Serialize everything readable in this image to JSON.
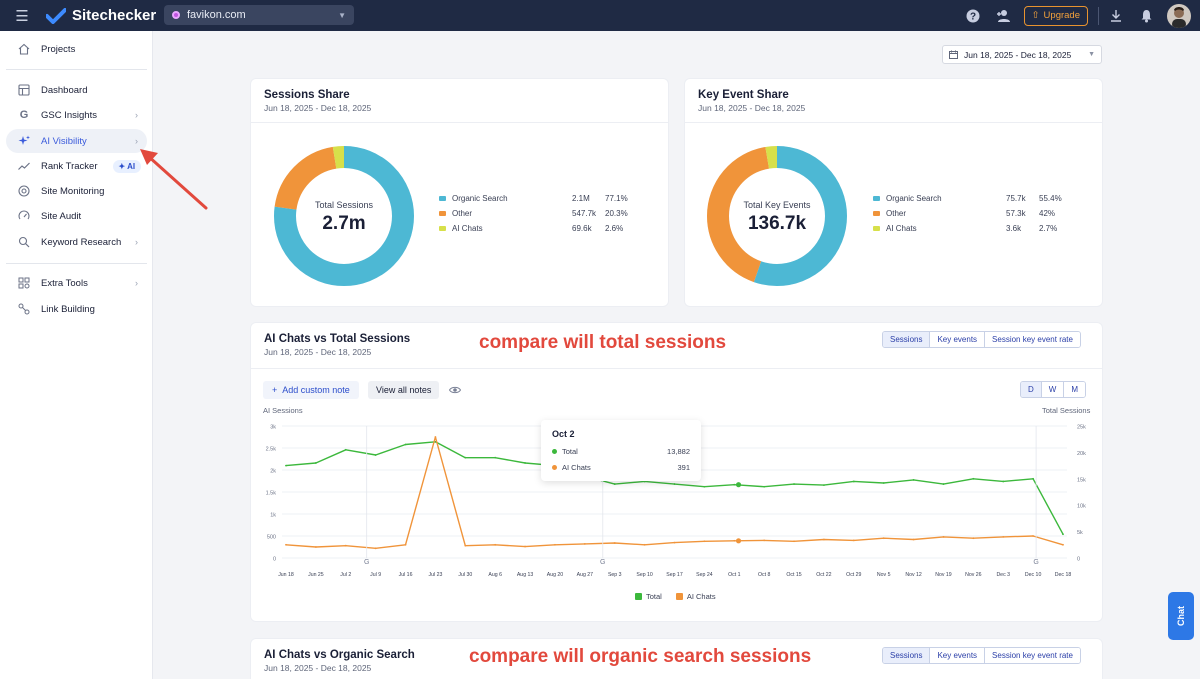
{
  "app": {
    "name": "Sitechecker"
  },
  "topbar": {
    "domain": "favikon.com",
    "upgrade_label": "Upgrade"
  },
  "sidebar": {
    "items": [
      {
        "label": "Projects",
        "icon": "home-icon"
      },
      {
        "label": "Dashboard",
        "icon": "dashboard-icon"
      },
      {
        "label": "GSC Insights",
        "icon": "google-icon"
      },
      {
        "label": "AI Visibility",
        "icon": "sparkle-icon",
        "active": true
      },
      {
        "label": "Rank Tracker",
        "icon": "trend-icon",
        "badge": "AI"
      },
      {
        "label": "Site Monitoring",
        "icon": "monitoring-icon"
      },
      {
        "label": "Site Audit",
        "icon": "audit-icon"
      },
      {
        "label": "Keyword Research",
        "icon": "keyword-icon"
      },
      {
        "label": "Extra Tools",
        "icon": "tools-icon"
      },
      {
        "label": "Link Building",
        "icon": "link-icon"
      }
    ]
  },
  "date_range": "Jun 18, 2025 - Dec 18, 2025",
  "sessions_share": {
    "title": "Sessions Share",
    "subtitle": "Jun 18, 2025 - Dec 18, 2025",
    "center_label": "Total Sessions",
    "center_value": "2.7m",
    "legend": [
      {
        "name": "Organic Search",
        "value": "2.1M",
        "percent": "77.1%",
        "share": 77.1,
        "color": "#4db8d4"
      },
      {
        "name": "Other",
        "value": "547.7k",
        "percent": "20.3%",
        "share": 20.3,
        "color": "#f0943a"
      },
      {
        "name": "AI Chats",
        "value": "69.6k",
        "percent": "2.6%",
        "share": 2.6,
        "color": "#d7e04a"
      }
    ]
  },
  "key_event_share": {
    "title": "Key Event Share",
    "subtitle": "Jun 18, 2025 - Dec 18, 2025",
    "center_label": "Total Key Events",
    "center_value": "136.7k",
    "legend": [
      {
        "name": "Organic Search",
        "value": "75.7k",
        "percent": "55.4%",
        "share": 55.4,
        "color": "#4db8d4"
      },
      {
        "name": "Other",
        "value": "57.3k",
        "percent": "42%",
        "share": 42,
        "color": "#f0943a"
      },
      {
        "name": "AI Chats",
        "value": "3.6k",
        "percent": "2.7%",
        "share": 2.7,
        "color": "#d7e04a"
      }
    ]
  },
  "ai_vs_total": {
    "title": "AI Chats vs Total Sessions",
    "subtitle": "Jun 18, 2025 - Dec 18, 2025",
    "annotation": "compare will total sessions",
    "tabs": [
      "Sessions",
      "Key events",
      "Session key event rate"
    ],
    "granularity": [
      "D",
      "W",
      "M"
    ],
    "add_note": "Add custom note",
    "view_notes": "View all notes",
    "left_axis_title": "AI Sessions",
    "right_axis_title": "Total Sessions",
    "tooltip": {
      "date": "Oct 2",
      "rows": [
        {
          "name": "Total",
          "value": "13,882",
          "color": "#3cb83c"
        },
        {
          "name": "AI Chats",
          "value": "391",
          "color": "#f0943a"
        }
      ]
    },
    "legend": [
      {
        "name": "Total",
        "color": "#3cb83c"
      },
      {
        "name": "AI Chats",
        "color": "#f0943a"
      }
    ]
  },
  "ai_vs_organic": {
    "title": "AI Chats vs Organic Search",
    "subtitle": "Jun 18, 2025 - Dec 18, 2025",
    "annotation": "compare will organic search sessions",
    "tabs": [
      "Sessions",
      "Key events",
      "Session key event rate"
    ]
  },
  "chat_widget": {
    "label": "Chat"
  },
  "chart_data": {
    "type": "line",
    "x": [
      "Jun 18",
      "Jun 25",
      "Jul 2",
      "Jul 9",
      "Jul 16",
      "Jul 23",
      "Jul 30",
      "Aug 6",
      "Aug 13",
      "Aug 20",
      "Aug 27",
      "Sep 3",
      "Sep 10",
      "Sep 17",
      "Sep 24",
      "Oct 1",
      "Oct 8",
      "Oct 15",
      "Oct 22",
      "Oct 29",
      "Nov 5",
      "Nov 12",
      "Nov 19",
      "Nov 26",
      "Dec 3",
      "Dec 10",
      "Dec 18"
    ],
    "left_ticks": [
      "0",
      "500",
      "1k",
      "1.5k",
      "2k",
      "2.5k",
      "3k"
    ],
    "right_ticks": [
      "0",
      "5k",
      "10k",
      "15k",
      "20k",
      "25k"
    ],
    "ylim_left": [
      0,
      3000
    ],
    "ylim_right": [
      0,
      25000
    ],
    "series": [
      {
        "name": "Total",
        "axis": "right",
        "color": "#3cb83c",
        "values": [
          17500,
          18000,
          20500,
          19500,
          21500,
          22000,
          19000,
          19000,
          18000,
          17500,
          15500,
          14000,
          14500,
          14000,
          13500,
          13882,
          13500,
          14000,
          13800,
          14500,
          14200,
          14800,
          14000,
          15000,
          14500,
          15000,
          4500
        ]
      },
      {
        "name": "AI Chats",
        "axis": "left",
        "color": "#f0943a",
        "values": [
          300,
          250,
          280,
          220,
          300,
          2750,
          280,
          300,
          260,
          300,
          320,
          340,
          300,
          350,
          380,
          391,
          400,
          380,
          420,
          400,
          450,
          420,
          480,
          450,
          480,
          500,
          300
        ]
      }
    ]
  }
}
